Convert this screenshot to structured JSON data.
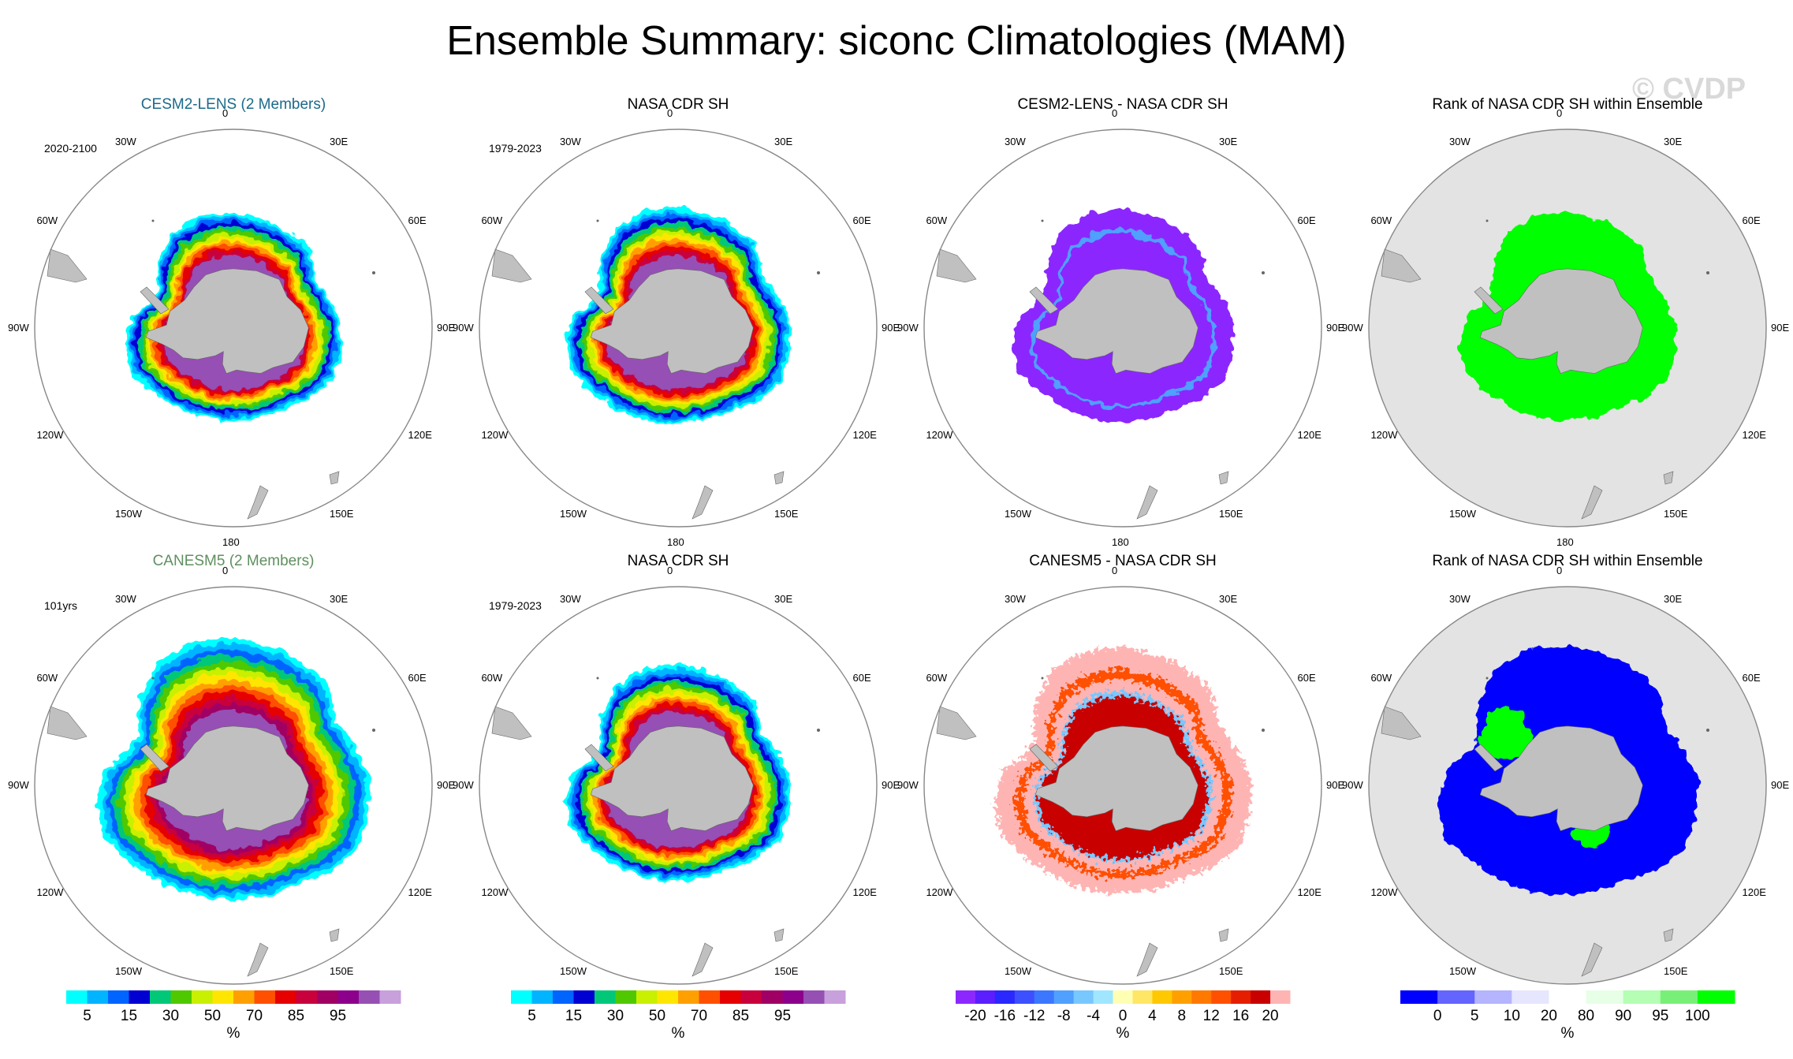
{
  "figure": {
    "title": "Ensemble Summary: siconc Climatologies (MAM)",
    "watermark": "© CVDP"
  },
  "colors": {
    "land": "#c0c0c0",
    "rank_bg": "#e3e3e3",
    "member_title_1": "#1b6a8a",
    "member_title_2": "#5f8f5f",
    "seq_palette": [
      "#00ffff",
      "#00b4ff",
      "#0064ff",
      "#0000d2",
      "#00c878",
      "#50c800",
      "#c8f000",
      "#ffe600",
      "#ffa000",
      "#ff5000",
      "#e60000",
      "#c8003c",
      "#a00064",
      "#8c008c",
      "#9650b4",
      "#c8a0dc"
    ],
    "diff_palette": [
      "#8c28ff",
      "#5a1eff",
      "#2828ff",
      "#3c50ff",
      "#3c78ff",
      "#50a0ff",
      "#78c8ff",
      "#a0e6ff",
      "#ffffb4",
      "#ffe664",
      "#ffc800",
      "#ffa000",
      "#ff7800",
      "#ff5000",
      "#e61e00",
      "#c80000",
      "#ffb4b4"
    ],
    "rank_palette": [
      "#0000ff",
      "#6464ff",
      "#b4b4ff",
      "#e6e6ff",
      "#ffffff",
      "#e6ffe6",
      "#b4ffb4",
      "#78f078",
      "#00ff00"
    ]
  },
  "panels": [
    {
      "title": "CESM2-LENS (2 Members)",
      "period": "2020-2100",
      "kind": "member"
    },
    {
      "title": "NASA CDR SH",
      "period": "1979-2023",
      "kind": "obs"
    },
    {
      "title": "CESM2-LENS - NASA CDR SH",
      "period": "",
      "kind": "diff_neg"
    },
    {
      "title": "Rank of NASA CDR SH within Ensemble",
      "period": "",
      "kind": "rank_high"
    },
    {
      "title": "CANESM5 (2 Members)",
      "period": "101yrs",
      "kind": "member_big"
    },
    {
      "title": "NASA CDR SH",
      "period": "1979-2023",
      "kind": "obs"
    },
    {
      "title": "CANESM5 - NASA CDR SH",
      "period": "",
      "kind": "diff_pos"
    },
    {
      "title": "Rank of NASA CDR SH within Ensemble",
      "period": "",
      "kind": "rank_low"
    }
  ],
  "longitude_labels": [
    "0",
    "30E",
    "60E",
    "90E",
    "120E",
    "150E",
    "180",
    "150W",
    "120W",
    "90W",
    "60W",
    "30W"
  ],
  "colorbars": [
    {
      "ticks": [
        "5",
        "15",
        "30",
        "50",
        "70",
        "85",
        "95"
      ],
      "unit": "%"
    },
    {
      "ticks": [
        "5",
        "15",
        "30",
        "50",
        "70",
        "85",
        "95"
      ],
      "unit": "%"
    },
    {
      "ticks": [
        "-20",
        "-16",
        "-12",
        "-8",
        "-4",
        "0",
        "4",
        "8",
        "12",
        "16",
        "20"
      ],
      "unit": "%"
    },
    {
      "ticks": [
        "0",
        "5",
        "10",
        "20",
        "80",
        "90",
        "95",
        "100"
      ],
      "unit": "%"
    }
  ]
}
